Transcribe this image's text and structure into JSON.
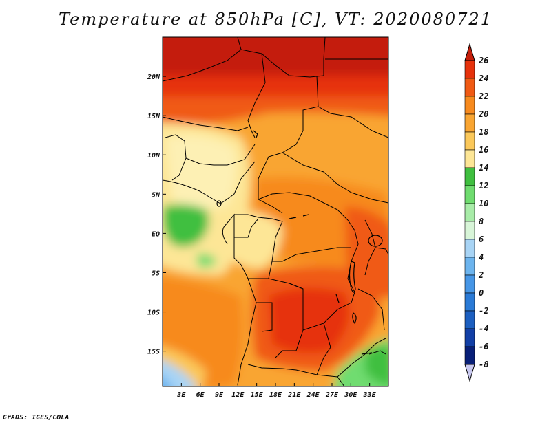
{
  "title": "Temperature at 850hPa [C], VT: 2020080721",
  "footer": "GrADS: IGES/COLA",
  "map": {
    "lon_range": [
      0,
      36
    ],
    "lat_range": [
      -19.5,
      25
    ],
    "lon_ticks": [
      {
        "value": 3,
        "label": "3E"
      },
      {
        "value": 6,
        "label": "6E"
      },
      {
        "value": 9,
        "label": "9E"
      },
      {
        "value": 12,
        "label": "12E"
      },
      {
        "value": 15,
        "label": "15E"
      },
      {
        "value": 18,
        "label": "18E"
      },
      {
        "value": 21,
        "label": "21E"
      },
      {
        "value": 24,
        "label": "24E"
      },
      {
        "value": 27,
        "label": "27E"
      },
      {
        "value": 30,
        "label": "30E"
      },
      {
        "value": 33,
        "label": "33E"
      }
    ],
    "lat_ticks": [
      {
        "value": 20,
        "label": "20N"
      },
      {
        "value": 15,
        "label": "15N"
      },
      {
        "value": 10,
        "label": "10N"
      },
      {
        "value": 5,
        "label": "5N"
      },
      {
        "value": 0,
        "label": "EQ"
      },
      {
        "value": -5,
        "label": "5S"
      },
      {
        "value": -10,
        "label": "10S"
      },
      {
        "value": -15,
        "label": "15S"
      }
    ]
  },
  "colorbar": {
    "levels": [
      "26",
      "24",
      "22",
      "20",
      "18",
      "16",
      "14",
      "12",
      "10",
      "8",
      "6",
      "4",
      "2",
      "0",
      "-2",
      "-4",
      "-6",
      "-8"
    ],
    "colors": [
      "#c41e0a",
      "#e6320c",
      "#f05a14",
      "#f78a1e",
      "#f9a532",
      "#fbc85a",
      "#fde696",
      "#3fbf3f",
      "#6fdc6f",
      "#a8eca8",
      "#d8f5d8",
      "#a8d4f5",
      "#6cb4ee",
      "#4696e6",
      "#2a7ad6",
      "#1c5fc0",
      "#123fa6",
      "#081f78"
    ],
    "min_color": "#c8c8f0"
  }
}
